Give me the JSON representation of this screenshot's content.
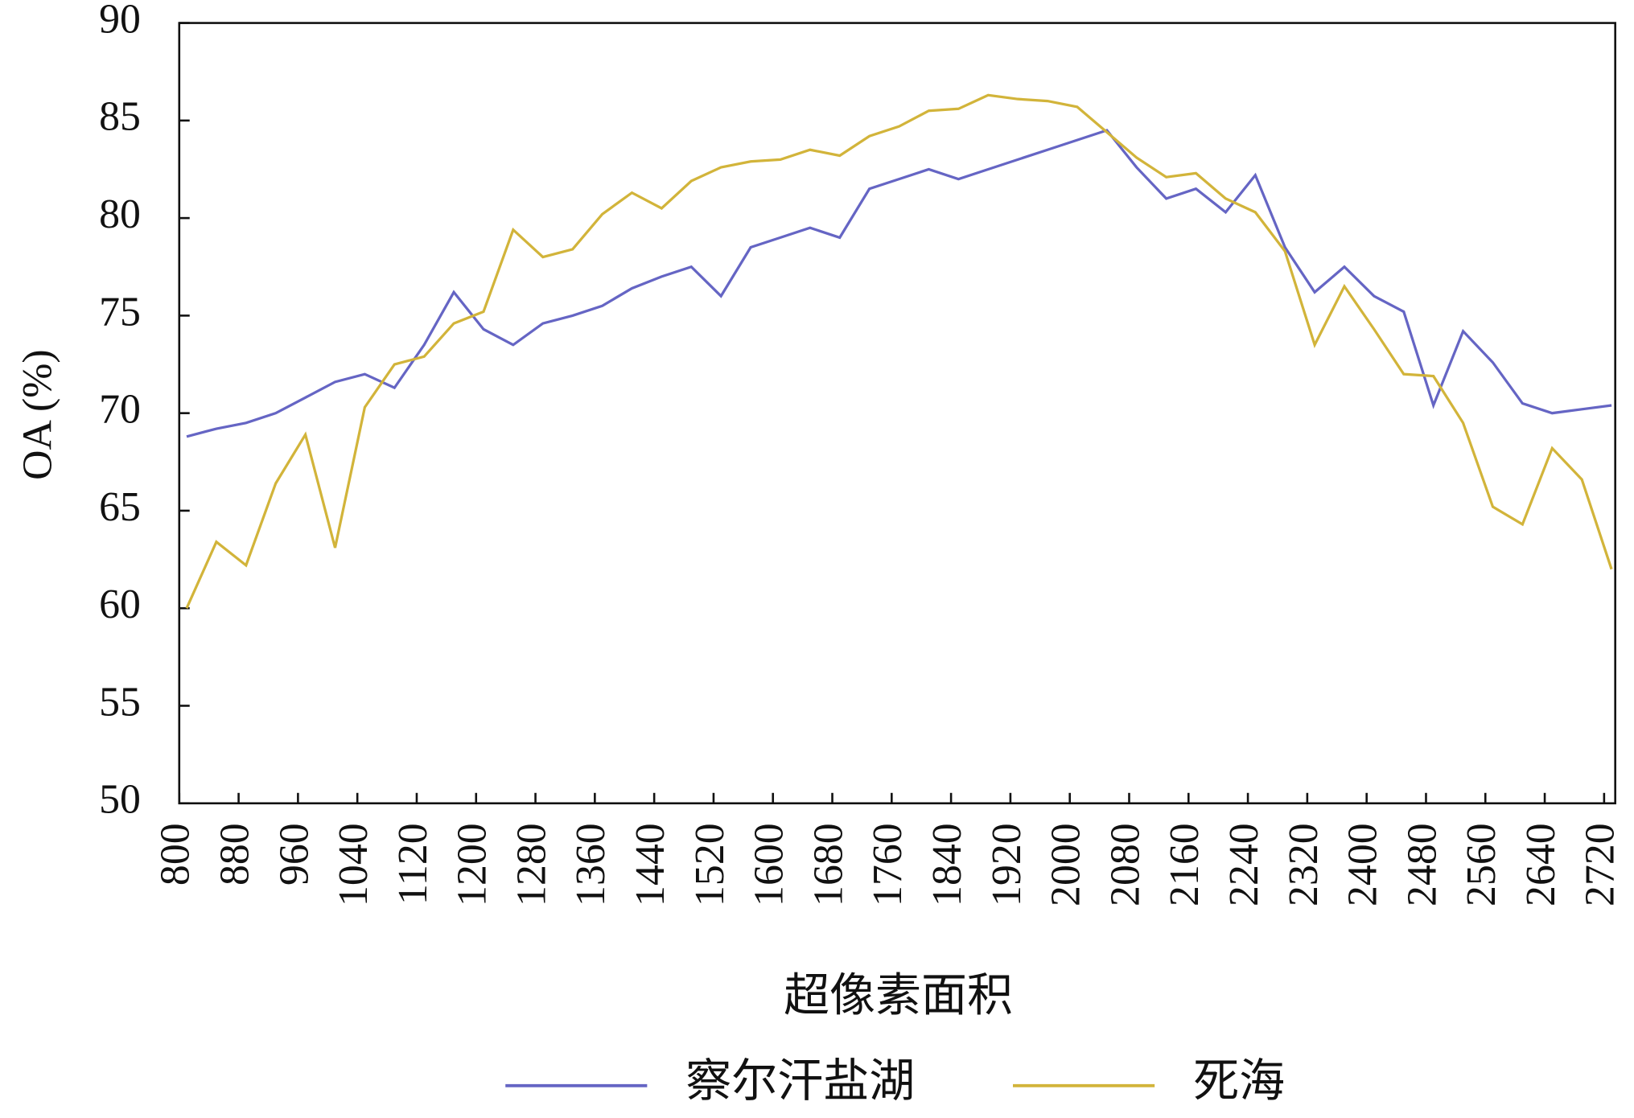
{
  "chart_data": {
    "type": "line",
    "y_label": "OA (%)",
    "x_label": "超像素面积",
    "x": [
      810,
      850,
      890,
      930,
      970,
      1010,
      1050,
      1090,
      1130,
      1170,
      1210,
      1250,
      1290,
      1330,
      1370,
      1410,
      1450,
      1490,
      1530,
      1570,
      1610,
      1650,
      1690,
      1730,
      1770,
      1810,
      1850,
      1890,
      1930,
      1970,
      2010,
      2050,
      2090,
      2130,
      2170,
      2210,
      2250,
      2290,
      2330,
      2370,
      2410,
      2450,
      2490,
      2530,
      2570,
      2610,
      2650,
      2690,
      2730
    ],
    "series": [
      {
        "name": "察尔汗盐湖",
        "color": "#6565c4",
        "values": [
          68.8,
          69.2,
          69.5,
          70.0,
          70.8,
          71.6,
          72.0,
          71.3,
          73.5,
          76.2,
          74.3,
          73.5,
          74.6,
          75.0,
          75.5,
          76.4,
          77.0,
          77.5,
          76.0,
          78.5,
          79.0,
          79.5,
          79.0,
          81.5,
          82.0,
          82.5,
          82.0,
          82.5,
          83.0,
          83.5,
          84.0,
          84.5,
          82.6,
          81.0,
          81.5,
          80.3,
          82.2,
          78.5,
          76.2,
          77.5,
          76.0,
          75.2,
          70.4,
          74.2,
          72.6,
          70.5,
          70.0,
          70.2,
          70.4
        ]
      },
      {
        "name": "死海",
        "color": "#d2b43a",
        "values": [
          60.0,
          63.4,
          62.2,
          66.4,
          68.9,
          63.1,
          70.3,
          72.5,
          72.9,
          74.6,
          75.2,
          79.4,
          78.0,
          78.4,
          80.2,
          81.3,
          80.5,
          81.9,
          82.6,
          82.9,
          83.0,
          83.5,
          83.2,
          84.2,
          84.7,
          85.5,
          85.6,
          86.3,
          86.1,
          86.0,
          85.7,
          84.4,
          83.1,
          82.1,
          82.3,
          81.0,
          80.3,
          78.3,
          73.5,
          76.5,
          74.3,
          72.0,
          71.9,
          69.5,
          65.2,
          64.3,
          68.2,
          66.6,
          62.0
        ]
      }
    ],
    "xlim": [
      800,
      2735
    ],
    "ylim": [
      50,
      90
    ],
    "xticks": [
      800,
      880,
      960,
      1040,
      1120,
      1200,
      1280,
      1360,
      1440,
      1520,
      1600,
      1680,
      1760,
      1840,
      1920,
      2000,
      2080,
      2160,
      2240,
      2320,
      2400,
      2480,
      2560,
      2640,
      2720
    ],
    "yticks": [
      50,
      55,
      60,
      65,
      70,
      75,
      80,
      85,
      90
    ],
    "legend": "bottom"
  }
}
